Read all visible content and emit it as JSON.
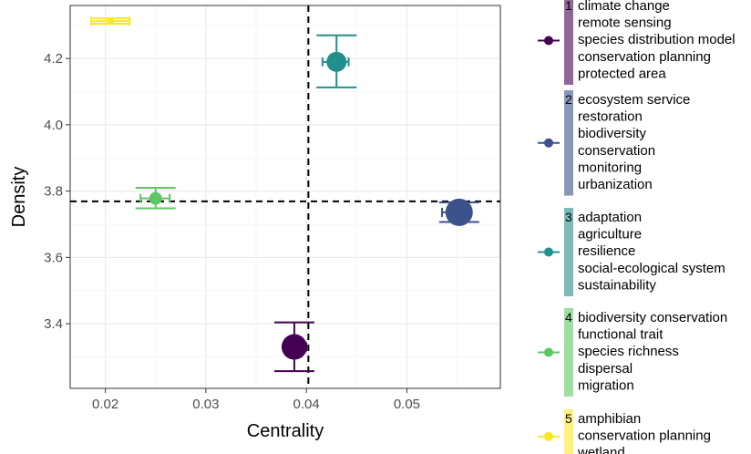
{
  "chart_data": {
    "type": "scatter",
    "xlabel": "Centrality",
    "ylabel": "Density",
    "xlim": [
      0.0165,
      0.0593
    ],
    "ylim": [
      3.205,
      4.36
    ],
    "xticks": [
      0.02,
      0.03,
      0.04,
      0.05
    ],
    "xtick_labels": [
      "0.02",
      "0.03",
      "0.04",
      "0.05"
    ],
    "yticks": [
      3.4,
      3.6,
      3.8,
      4.0,
      4.2
    ],
    "ytick_labels": [
      "3.4",
      "3.6",
      "3.8",
      "4.0",
      "4.2"
    ],
    "grid": true,
    "reference_lines": {
      "x": 0.0402,
      "y": 3.769
    },
    "legend_position": "right",
    "clusters": [
      {
        "label": "1",
        "color": "#440154",
        "centrality": 0.0388,
        "density": 3.33,
        "x_err": [
          0.0377,
          0.04
        ],
        "y_err": [
          3.257,
          3.404
        ],
        "size": 14,
        "keywords": [
          "climate change",
          "remote sensing",
          "species distribution model",
          "conservation planning",
          "protected area"
        ]
      },
      {
        "label": "2",
        "color": "#3B528B",
        "centrality": 0.0552,
        "density": 3.736,
        "x_err": [
          0.0535,
          0.0563
        ],
        "y_err": [
          3.707,
          3.766
        ],
        "size": 15,
        "keywords": [
          "ecosystem service",
          "restoration",
          "biodiversity",
          "conservation",
          "monitoring",
          "urbanization"
        ]
      },
      {
        "label": "3",
        "color": "#21908C",
        "centrality": 0.043,
        "density": 4.19,
        "x_err": [
          0.0416,
          0.0442
        ],
        "y_err": [
          4.113,
          4.27
        ],
        "size": 11,
        "keywords": [
          "adaptation",
          "agriculture",
          "resilience",
          "social-ecological system",
          "sustainability"
        ]
      },
      {
        "label": "4",
        "color": "#5DC863",
        "centrality": 0.025,
        "density": 3.778,
        "x_err": [
          0.0235,
          0.0264
        ],
        "y_err": [
          3.748,
          3.81
        ],
        "size": 7,
        "keywords": [
          "biodiversity conservation",
          "functional trait",
          "species richness",
          "dispersal",
          "migration"
        ]
      },
      {
        "label": "5",
        "color": "#FDE725",
        "centrality": 0.0205,
        "density": 4.313,
        "x_err": [
          0.0186,
          0.0224
        ],
        "y_err": [
          4.305,
          4.321
        ],
        "size": 4,
        "keywords": [
          "amphibian",
          "conservation planning",
          "wetland"
        ]
      }
    ]
  }
}
